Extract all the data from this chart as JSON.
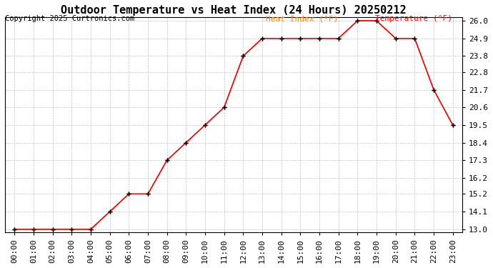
{
  "title": "Outdoor Temperature vs Heat Index (24 Hours) 20250212",
  "copyright": "Copyright 2025 Curtronics.com",
  "legend_heat": "Heat Index (°F)",
  "legend_temp": "Temperature (°F)",
  "hours": [
    "00:00",
    "01:00",
    "02:00",
    "03:00",
    "04:00",
    "05:00",
    "06:00",
    "07:00",
    "08:00",
    "09:00",
    "10:00",
    "11:00",
    "12:00",
    "13:00",
    "14:00",
    "15:00",
    "16:00",
    "17:00",
    "18:00",
    "19:00",
    "20:00",
    "21:00",
    "22:00",
    "23:00"
  ],
  "temperature": [
    13.0,
    13.0,
    13.0,
    13.0,
    13.0,
    14.1,
    15.2,
    15.2,
    17.3,
    18.4,
    19.5,
    20.6,
    23.8,
    24.9,
    24.9,
    24.9,
    24.9,
    24.9,
    26.0,
    26.0,
    24.9,
    24.9,
    21.7,
    19.5
  ],
  "heat_index": [
    13.0,
    13.0,
    13.0,
    13.0,
    13.0,
    14.1,
    15.2,
    15.2,
    17.3,
    18.4,
    19.5,
    20.6,
    23.8,
    24.9,
    24.9,
    24.9,
    24.9,
    24.9,
    26.0,
    26.0,
    24.9,
    24.9,
    21.7,
    19.5
  ],
  "line_color": "#ff0000",
  "marker": "+",
  "marker_color": "#000000",
  "background_color": "#ffffff",
  "grid_color": "#aaaaaa",
  "title_color": "#000000",
  "copyright_color": "#000000",
  "legend_heat_color": "#ff8c00",
  "legend_temp_color": "#ff0000",
  "ylim_min": 13.0,
  "ylim_max": 26.0,
  "yticks": [
    13.0,
    14.1,
    15.2,
    16.2,
    17.3,
    18.4,
    19.5,
    20.6,
    21.7,
    22.8,
    23.8,
    24.9,
    26.0
  ],
  "title_fontsize": 11,
  "tick_fontsize": 8,
  "copyright_fontsize": 7.5,
  "legend_fontsize": 8
}
